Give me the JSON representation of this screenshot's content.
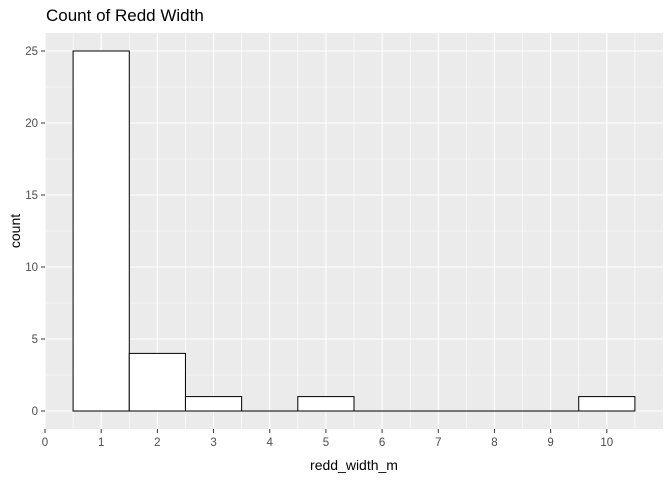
{
  "chart_data": {
    "type": "bar",
    "title": "Count of Redd Width",
    "xlabel": "redd_width_m",
    "ylabel": "count",
    "x": [
      1,
      2,
      3,
      4,
      5,
      6,
      7,
      8,
      9,
      10
    ],
    "values": [
      25,
      4,
      1,
      0,
      1,
      0,
      0,
      0,
      0,
      1
    ],
    "bin_width": 1,
    "xlim": [
      0,
      11
    ],
    "ylim": [
      0,
      26.25
    ],
    "x_ticks": [
      "0",
      "1",
      "2",
      "3",
      "4",
      "5",
      "6",
      "7",
      "8",
      "9",
      "10"
    ],
    "y_ticks": [
      "0",
      "5",
      "10",
      "15",
      "20",
      "25"
    ],
    "grid": true,
    "colors": {
      "panel": "#ebebeb",
      "grid": "#ffffff",
      "bar_fill": "#ffffff",
      "bar_stroke": "#000000"
    }
  }
}
